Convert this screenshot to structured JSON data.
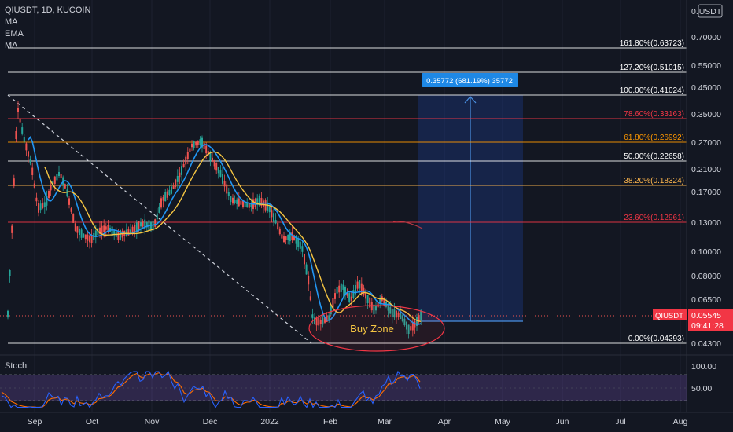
{
  "header": {
    "symbol_line": "QIUSDT, 1D, KUCOIN",
    "indicators": [
      "MA",
      "EMA",
      "MA"
    ],
    "currency": "USDT",
    "currency_prefix": "0."
  },
  "price_axis": {
    "ticks": [
      "0.70000",
      "0.55000",
      "0.45000",
      "0.35000",
      "0.27000",
      "0.21000",
      "0.17000",
      "0.13000",
      "0.10000",
      "0.08000",
      "0.06500",
      "0.04300"
    ]
  },
  "time_axis": {
    "labels": [
      "Sep",
      "Oct",
      "Nov",
      "Dec",
      "2022",
      "Feb",
      "Mar",
      "Apr",
      "May",
      "Jun",
      "Jul",
      "Aug"
    ]
  },
  "fib_levels": [
    {
      "label": "161.80%(0.63723)",
      "color": "#ffffff"
    },
    {
      "label": "127.20%(0.51015)",
      "color": "#ffffff"
    },
    {
      "label": "100.00%(0.41024)",
      "color": "#ffffff"
    },
    {
      "label": "78.60%(0.33163)",
      "color": "#f23645"
    },
    {
      "label": "61.80%(0.26992)",
      "color": "#ff9800"
    },
    {
      "label": "50.00%(0.22658)",
      "color": "#ffffff"
    },
    {
      "label": "38.20%(0.18324)",
      "color": "#ffb74d"
    },
    {
      "label": "23.60%(0.12961)",
      "color": "#f23645"
    },
    {
      "label": "0.00%(0.04293)",
      "color": "#ffffff"
    }
  ],
  "measure_label": "0.35772 (681.19%) 35772",
  "buy_zone_label": "Buy Zone",
  "price_tag": {
    "symbol": "QIUSDT",
    "price": "0.05545",
    "countdown": "09:41:28",
    "color": "#f23645"
  },
  "stoch": {
    "title": "Stoch",
    "ticks": [
      "100.00",
      "50.00"
    ]
  },
  "colors": {
    "up": "#26a69a",
    "down": "#ef5350",
    "ema": "#2196f3",
    "ma": "#f5c542",
    "stoch_k": "#2962ff",
    "stoch_d": "#ff6d00",
    "stoch_band": "#7e57c2"
  }
}
